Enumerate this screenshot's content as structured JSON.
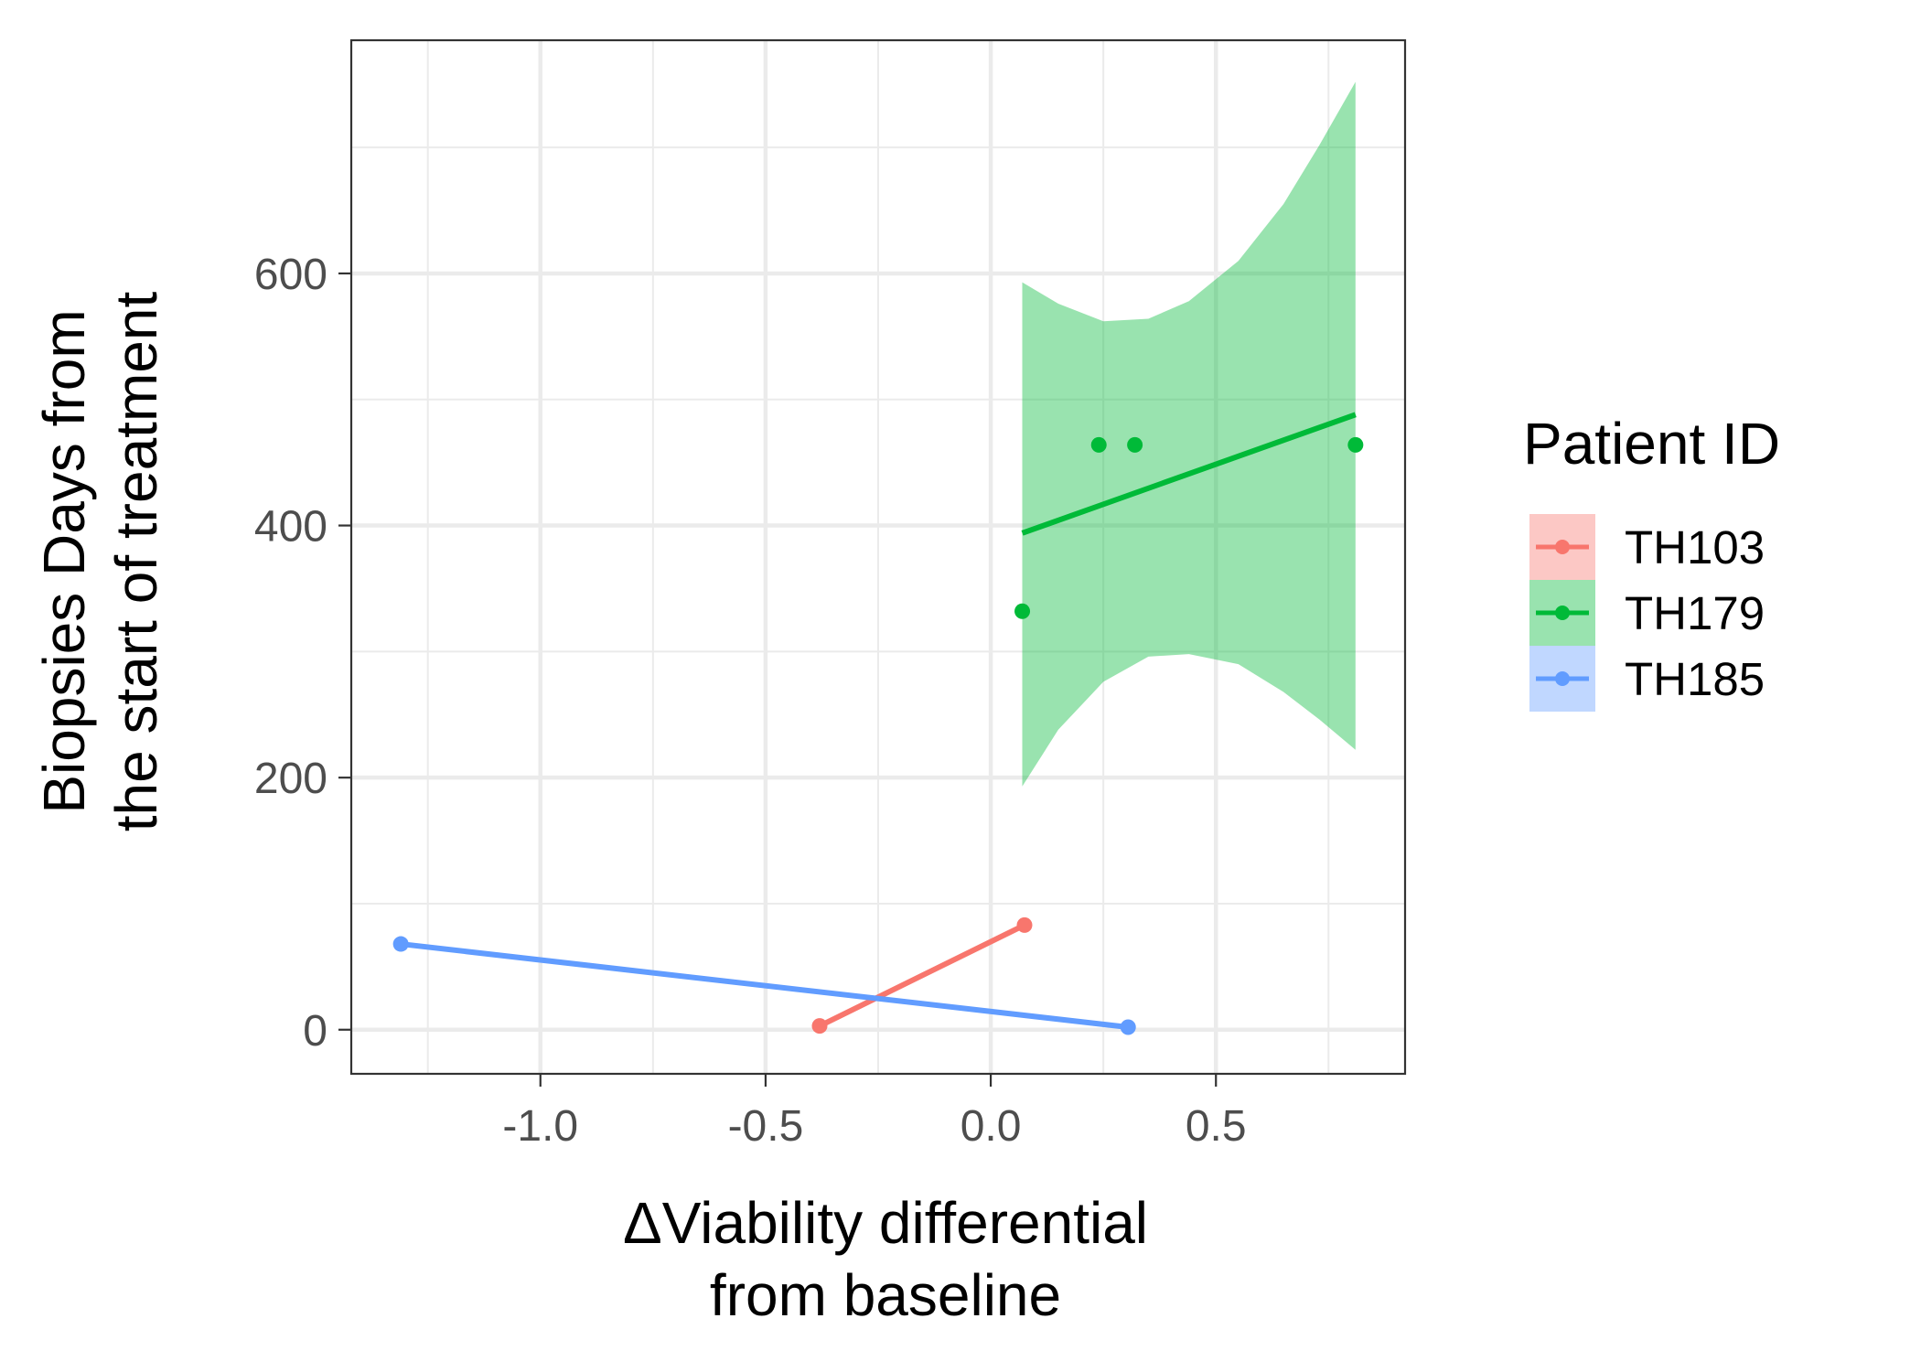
{
  "chart_data": {
    "type": "scatter",
    "xlabel": [
      "ΔViability differential",
      "from baseline"
    ],
    "ylabel": [
      "Biopsies Days from",
      "the start of treatment"
    ],
    "xlim": [
      -1.42,
      0.92
    ],
    "ylim": [
      -35,
      785
    ],
    "x_ticks": [
      -1.0,
      -0.5,
      0.0,
      0.5
    ],
    "x_tick_labels": [
      "-1.0",
      "-0.5",
      "0.0",
      "0.5"
    ],
    "y_ticks": [
      0,
      200,
      400,
      600
    ],
    "y_tick_labels": [
      "0",
      "200",
      "400",
      "600"
    ],
    "grid": true,
    "legend": {
      "title": "Patient ID",
      "position": "right"
    },
    "series": [
      {
        "name": "TH103",
        "color": "#F8766D",
        "points": [
          {
            "x": -0.38,
            "y": 3
          },
          {
            "x": 0.075,
            "y": 83
          }
        ],
        "fit": {
          "x0": -0.38,
          "y0": 3,
          "x1": 0.075,
          "y1": 83
        },
        "band": null
      },
      {
        "name": "TH179",
        "color": "#00BA38",
        "points": [
          {
            "x": 0.07,
            "y": 332
          },
          {
            "x": 0.24,
            "y": 464
          },
          {
            "x": 0.32,
            "y": 464
          },
          {
            "x": 0.81,
            "y": 464
          }
        ],
        "fit": {
          "x0": 0.07,
          "y0": 394,
          "x1": 0.81,
          "y1": 488
        },
        "band": {
          "x": [
            0.07,
            0.15,
            0.25,
            0.35,
            0.44,
            0.55,
            0.65,
            0.73,
            0.81
          ],
          "upper": [
            593,
            576,
            562,
            564,
            578,
            610,
            655,
            702,
            752
          ],
          "lower": [
            193,
            238,
            276,
            296,
            298,
            290,
            268,
            246,
            222
          ]
        }
      },
      {
        "name": "TH185",
        "color": "#619CFF",
        "points": [
          {
            "x": -1.31,
            "y": 68
          },
          {
            "x": 0.305,
            "y": 2
          }
        ],
        "fit": {
          "x0": -1.31,
          "y0": 68,
          "x1": 0.305,
          "y1": 2
        },
        "band": null
      }
    ]
  }
}
